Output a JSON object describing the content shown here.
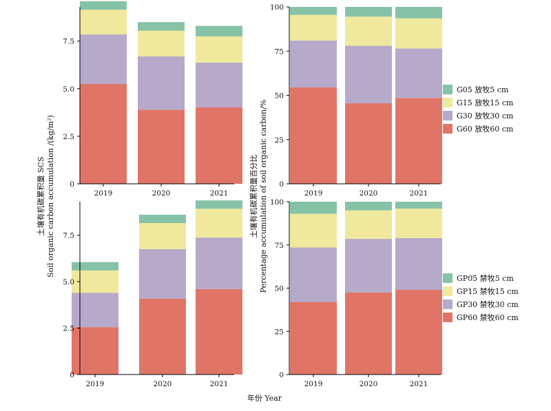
{
  "labels": {
    "ylabel_left_cn": "土壤有机碳累积量 SCS",
    "ylabel_left_en": "Soil organic carbon accumulation /(kg/m²)",
    "ylabel_right_cn": "土壤有机碳累积量百分比",
    "ylabel_right_en": "Percentage accumulation of soil organic carbon/%",
    "xlabel": "年份 Year"
  },
  "colors": {
    "d60": "#e07567",
    "d30": "#b6a9c9",
    "d15": "#f0e99d",
    "d05": "#86c2a6"
  },
  "legends": {
    "grazing": [
      {
        "key": "d05",
        "label": "G05 放牧5 cm"
      },
      {
        "key": "d15",
        "label": "G15 放牧15 cm"
      },
      {
        "key": "d30",
        "label": "G30 放牧30 cm"
      },
      {
        "key": "d60",
        "label": "G60 放牧60 cm"
      }
    ],
    "prohibited": [
      {
        "key": "d05",
        "label": "GP05 禁牧5 cm"
      },
      {
        "key": "d15",
        "label": "GP15 禁牧15 cm"
      },
      {
        "key": "d30",
        "label": "GP30 禁牧30 cm"
      },
      {
        "key": "d60",
        "label": "GP60 禁牧60 cm"
      }
    ]
  },
  "chart_data": [
    {
      "type": "bar",
      "stacked": true,
      "categories": [
        "2019",
        "2020",
        "2021"
      ],
      "ylim": [
        0,
        9.3
      ],
      "yticks": [
        "0",
        "2.5",
        "5.0",
        "7.5"
      ],
      "series": [
        {
          "name": "G60 放牧60 cm",
          "key": "d60",
          "values": [
            5.25,
            3.9,
            4.02
          ]
        },
        {
          "name": "G30 放牧30 cm",
          "key": "d30",
          "values": [
            2.6,
            2.8,
            2.35
          ]
        },
        {
          "name": "G15 放牧15 cm",
          "key": "d15",
          "values": [
            1.3,
            1.35,
            1.38
          ]
        },
        {
          "name": "G05 放牧5 cm",
          "key": "d05",
          "values": [
            0.45,
            0.45,
            0.55
          ]
        }
      ]
    },
    {
      "type": "bar",
      "stacked": true,
      "categories": [
        "2019",
        "2020",
        "2021"
      ],
      "ylim": [
        0,
        100
      ],
      "yticks": [
        "0",
        "25",
        "50",
        "75",
        "100"
      ],
      "series": [
        {
          "name": "G60 放牧60 cm",
          "key": "d60",
          "values": [
            54.5,
            45.5,
            48.5
          ]
        },
        {
          "name": "G30 放牧30 cm",
          "key": "d30",
          "values": [
            26.5,
            32.5,
            28.0
          ]
        },
        {
          "name": "G15 放牧15 cm",
          "key": "d15",
          "values": [
            14.5,
            16.5,
            17.0
          ]
        },
        {
          "name": "G05 放牧5 cm",
          "key": "d05",
          "values": [
            4.5,
            5.5,
            6.5
          ]
        }
      ]
    },
    {
      "type": "bar",
      "stacked": true,
      "categories": [
        "2019",
        "2020",
        "2021"
      ],
      "ylim": [
        0,
        9.3
      ],
      "yticks": [
        "0",
        "2.5",
        "5.0",
        "7.5"
      ],
      "series": [
        {
          "name": "GP60 禁牧60 cm",
          "key": "d60",
          "values": [
            2.55,
            4.08,
            4.6
          ]
        },
        {
          "name": "GP30 禁牧30 cm",
          "key": "d30",
          "values": [
            1.85,
            2.67,
            2.77
          ]
        },
        {
          "name": "GP15 禁牧15 cm",
          "key": "d15",
          "values": [
            1.2,
            1.4,
            1.55
          ]
        },
        {
          "name": "GP05 禁牧5 cm",
          "key": "d05",
          "values": [
            0.45,
            0.45,
            0.45
          ]
        }
      ]
    },
    {
      "type": "bar",
      "stacked": true,
      "categories": [
        "2019",
        "2020",
        "2021"
      ],
      "ylim": [
        0,
        100
      ],
      "yticks": [
        "0",
        "25",
        "50",
        "75",
        "100"
      ],
      "series": [
        {
          "name": "GP60 禁牧60 cm",
          "key": "d60",
          "values": [
            42.0,
            47.5,
            49.0
          ]
        },
        {
          "name": "GP30 禁牧30 cm",
          "key": "d30",
          "values": [
            31.5,
            31.0,
            30.0
          ]
        },
        {
          "name": "GP15 禁牧15 cm",
          "key": "d15",
          "values": [
            19.5,
            16.5,
            17.0
          ]
        },
        {
          "name": "GP05 禁牧5 cm",
          "key": "d05",
          "values": [
            7.0,
            5.0,
            4.0
          ]
        }
      ]
    }
  ]
}
